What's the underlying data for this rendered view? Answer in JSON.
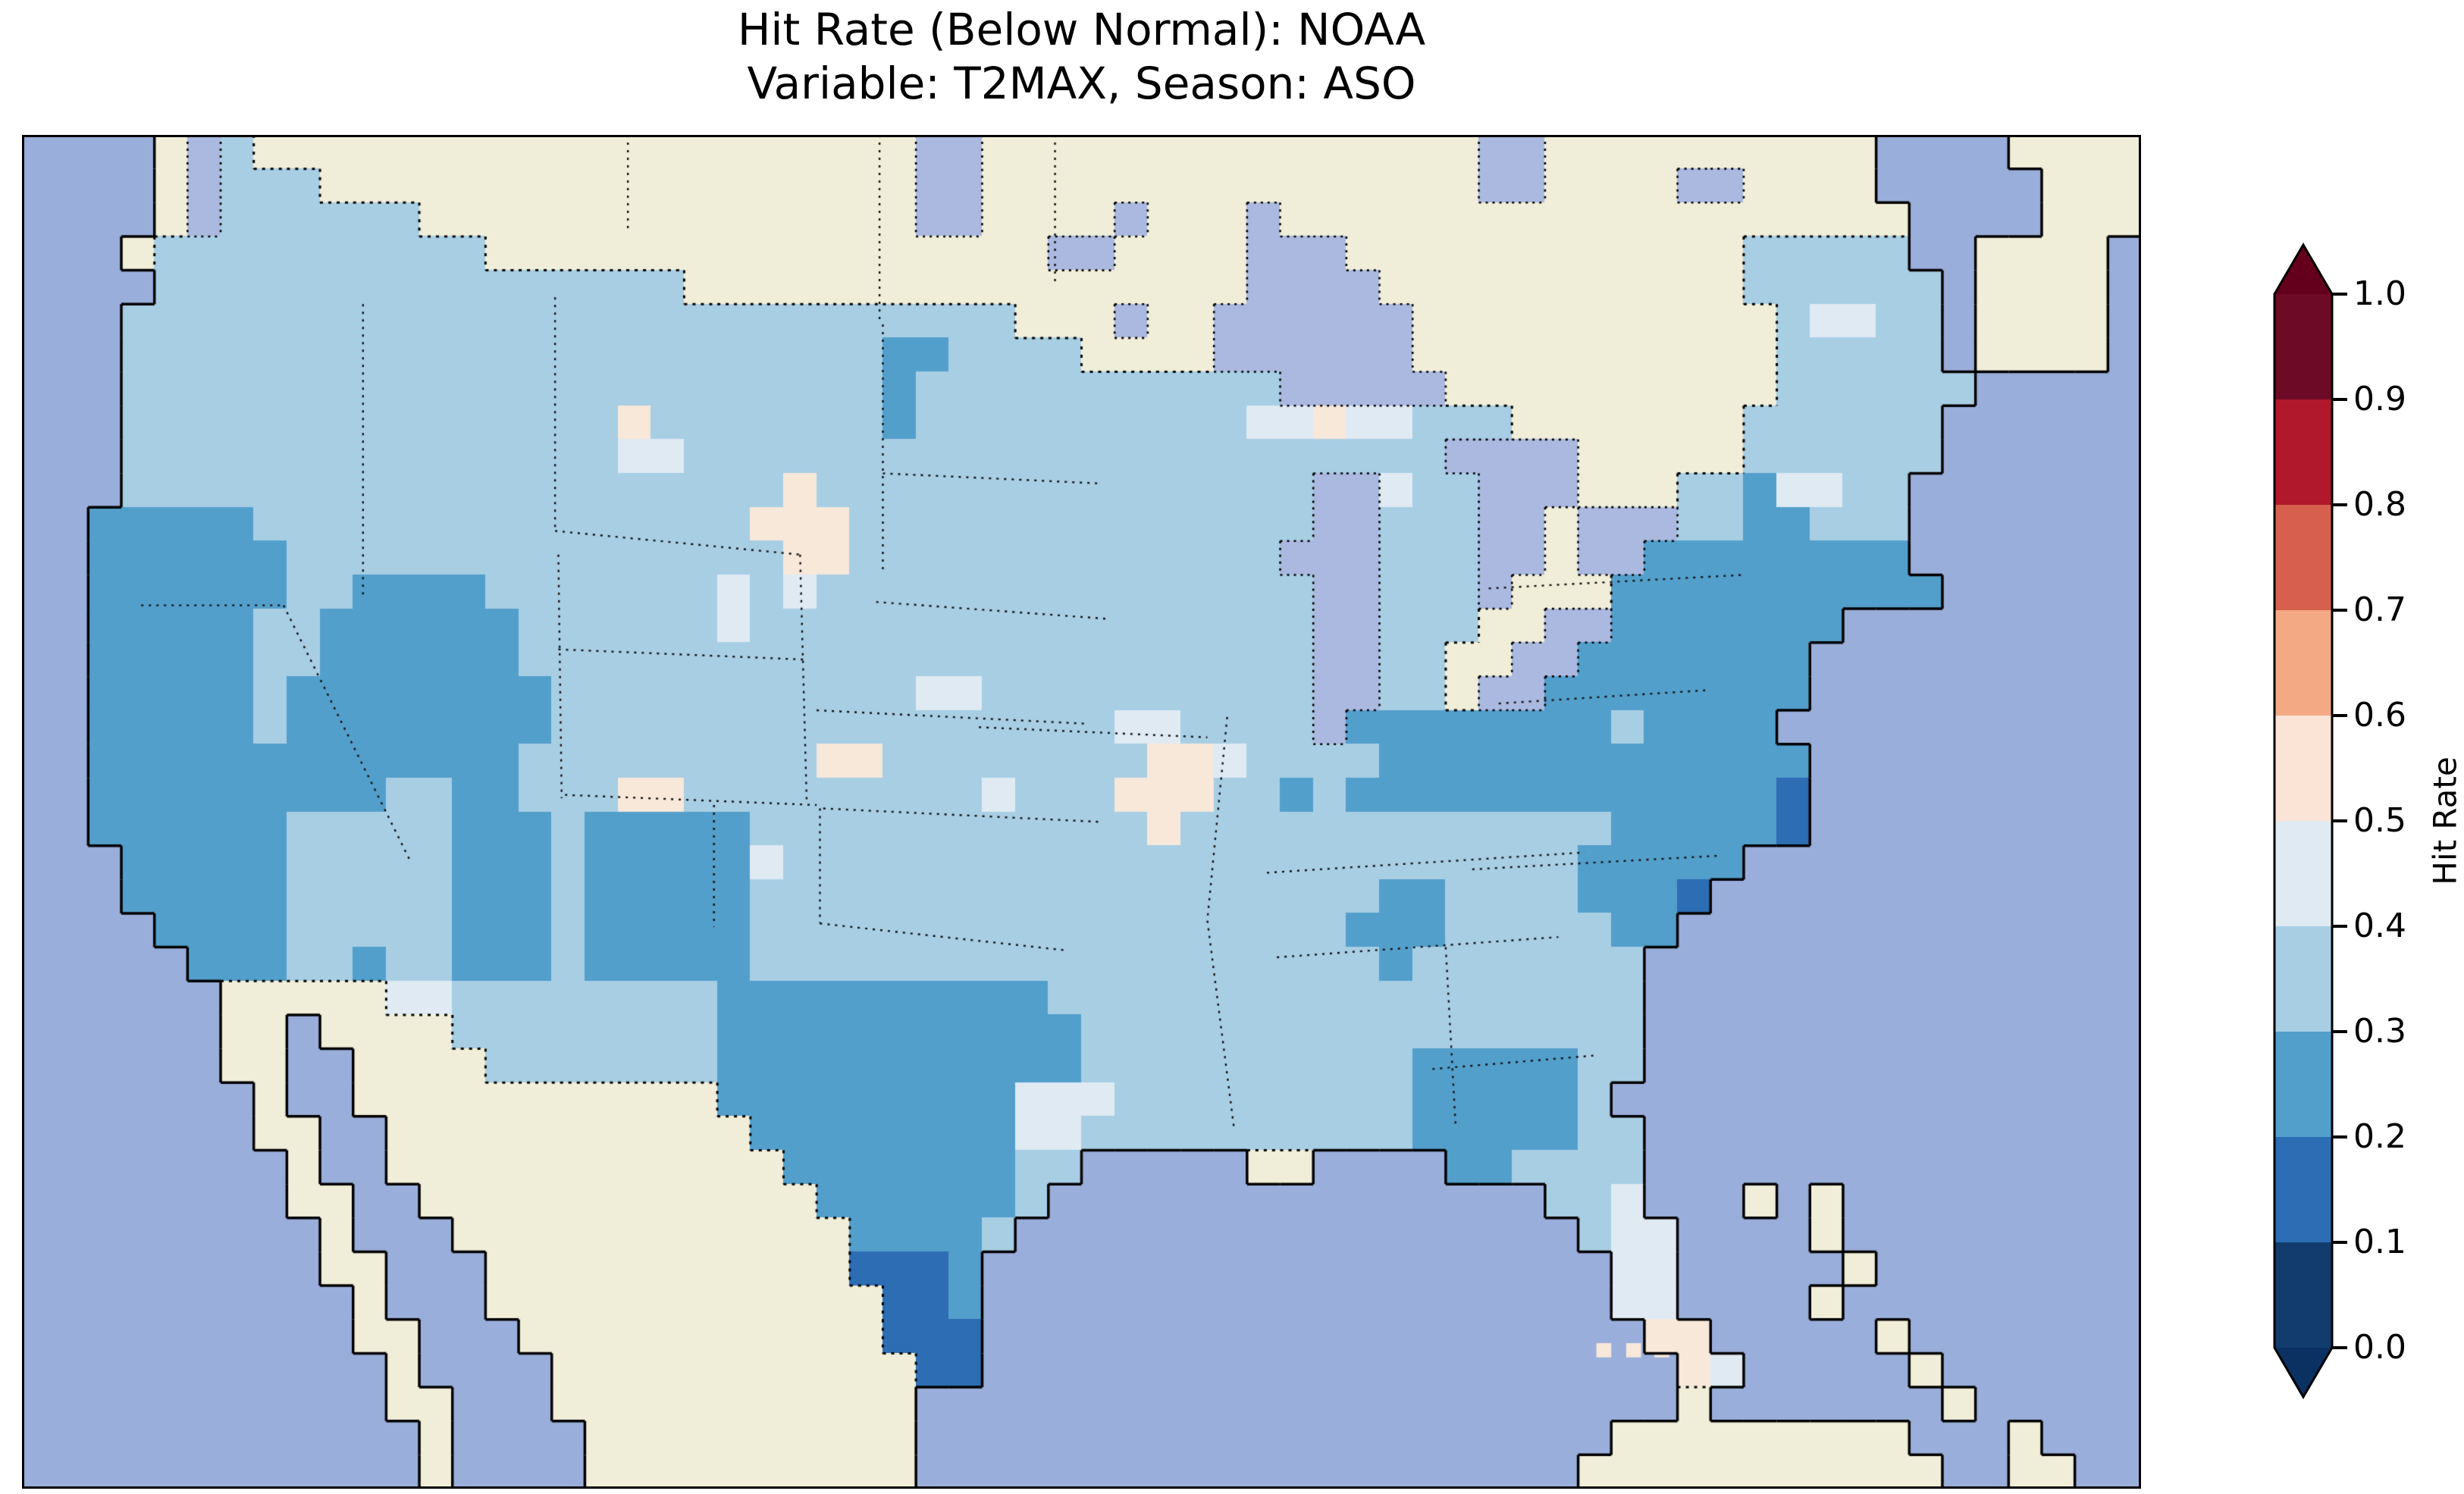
{
  "title": {
    "line1": "Hit Rate (Below Normal): NOAA",
    "line2": "Variable: T2MAX, Season: ASO"
  },
  "colorbar": {
    "label": "Hit Rate",
    "ticks": [
      "1.0",
      "0.9",
      "0.8",
      "0.7",
      "0.6",
      "0.5",
      "0.4",
      "0.3",
      "0.2",
      "0.1",
      "0.0"
    ],
    "bins_top_to_bottom": [
      {
        "range": "0.9-1.0",
        "color": "#6d0b26"
      },
      {
        "range": "0.8-0.9",
        "color": "#b1182c"
      },
      {
        "range": "0.7-0.8",
        "color": "#d6604d"
      },
      {
        "range": "0.6-0.7",
        "color": "#f3a983"
      },
      {
        "range": "0.5-0.6",
        "color": "#fbe3d6"
      },
      {
        "range": "0.4-0.5",
        "color": "#dfeaf3"
      },
      {
        "range": "0.3-0.4",
        "color": "#a8cee4"
      },
      {
        "range": "0.2-0.3",
        "color": "#539fcc"
      },
      {
        "range": "0.1-0.2",
        "color": "#2d6db4"
      },
      {
        "range": "0.0-0.1",
        "color": "#113c6d"
      }
    ],
    "over_arrow_color": "#65001c",
    "under_arrow_color": "#0a3161"
  },
  "chart_data": {
    "type": "heatmap",
    "title": "Hit Rate (Below Normal): NOAA",
    "subtitle": "Variable: T2MAX, Season: ASO",
    "metric": "Hit Rate",
    "region": "Contiguous United States (Lambert-style map, Canada/Mexico masked beige)",
    "colormap": "RdBu reversed, discrete 0.1 bins from 0.0 to 1.0, extend arrows both ends",
    "value_range_shown_on_map": [
      0.1,
      0.6
    ],
    "value_bins_on_map": {
      "a": "0.5-0.6",
      "b": "0.4-0.5",
      "c": "0.3-0.4",
      "d": "0.2-0.3",
      "e": "0.1-0.2"
    },
    "cell_legend": {
      ".": "ocean",
      "#": "non-US land (masked)",
      "L": "lake / inland water"
    },
    "palette": {
      ".": "#9aaedb",
      "#": "#f0eed9",
      "L": "#abb8e0",
      "a": "#f7e8da",
      "b": "#dfeaf3",
      "c": "#a8cee4",
      "d": "#539fcc",
      "e": "#2d6db4"
    },
    "grid_cols": 64,
    "grid_rows_count": 40,
    "grid_rows": [
      "....#Lc####################LL###############LL##########....####",
      "....#Lccc##################LL###############LL####LL####.....###",
      "....#Lcccccc###############LL####L###L###################....###",
      "...#cccccccccc#################LL####LLL############ccccc..####.",
      "....cccccccccccccccc#################LLLL###########cccccc.####.",
      "...ccccccccccccccccccccccccccc###L##LLLLLL###########cbbcc.####.",
      "...cccccccccccccccccccccccddcccc####LLLLLL###########ccccc.####.",
      "...cccccccccccccccccccccccdcccccccccccLLLLL##########cccccc.....",
      "...cccccccccccccccacccccccdccccccccccbbabbccc#######cccccc......",
      "...cccccccccccccccbbcccccccccccccccccccccccLLLL#####cccccc......",
      "...ccccccccccccccccccccacccccccccccccccLLbccLLL###ccdbbcc.......",
      "..dddddcccccccccccccccaaaccccccccccccccLLcccLL#LLLccddccc.......",
      "..ddddddcccccccccccccccaacccccccccccccLLLcccLL#LLdddddddd.......",
      "..ddddddccddddcccccccbcbcccccccccccccccLLcccL###dddddddddd......",
      "..dddddccddddddccccccbcccccccccccccccccLLccc##LLddddddd.........",
      "..dddddccddddddccccccccccccccccccccccccLLcc##LLddddddd..........",
      "..dddddcddddddddcccccccccccbbccccccccccLLcc#LLdddddddd..........",
      "..dddddcddddddddcccccccccccccccccbbccccLddddddddcdddd...........",
      "..dddddddddddddcccccccccaaccccccccaabccccddddddddddddd..........",
      "..dddddddddccddcccaacccccccccbcccaaaccdcddddddddddddde..........",
      "..ddddddcccccdddcdddddccccccccccccacccccccccccccddddde..........",
      "...dddddcccccdddcdddddbccccccccccccccccccccccccddddd............",
      "...dddddcccccdddcdddddcccccccccccccccccccddccccddde.............",
      "....ddddcccccdddcdddddccccccccccccccccccdddcccccdd..............",
      ".....dddccdccdddcdddddcccccccccccccccccccdccccccc...............",
      "......#####bbccccccccddddddddddcccccccccccccccccc...............",
      "......##.####ccccccccdddddddddddccccccccccccccccc...............",
      "......##..####cccccccdddddddddddccccccccccdddddcc...............",
      ".......#..###########dddddddddbbbcccccccccdddddc................",
      ".......##..###########ddddddddbbccccccccccdddddcc...............",
      "........#..############dddddddcc.....##....ddcccc...............",
      "........##..############ddddddc...............ccb...#.#.........",
      ".........#...############ddddc.................cbb....#.........",
      ".........##...###########eeed...................bb.....#........",
      "..........#...############eed...................bb....#.........",
      "..........##...###########eee....................aa.....#.......",
      "...........#....###########ee.....................ab.....#......",
      "...........##...###########.......................#.......#.....",
      "............#....##########.....................#########...#...",
      "............#....##########....................###########..##.."
    ],
    "small_white_cells": [
      {
        "row": 35.7,
        "col": 47.55,
        "bin": "a"
      },
      {
        "row": 35.7,
        "col": 48.45,
        "bin": "a"
      },
      {
        "row": 35.7,
        "col": 49.3,
        "bin": "a"
      }
    ],
    "summary": "Most of CONUS is 0.3-0.4. 0.2-0.3 covers the Pacific Northwest coast, Great Basin, southern California, Arizona/New Mexico, west & south Texas, the central Gulf Coast, Tennessee, the Ohio Valley, Mid-Atlantic and southern New England. Isolated 0.1-0.2 cells near Delaware Bay, coastal North Carolina, Del Rio TX and the south Texas tip. Scattered 0.4-0.6 near-white cells in Montana/Wyoming, Kansas, Colorado, southern Illinois, Michigan's UP and Florida."
  }
}
